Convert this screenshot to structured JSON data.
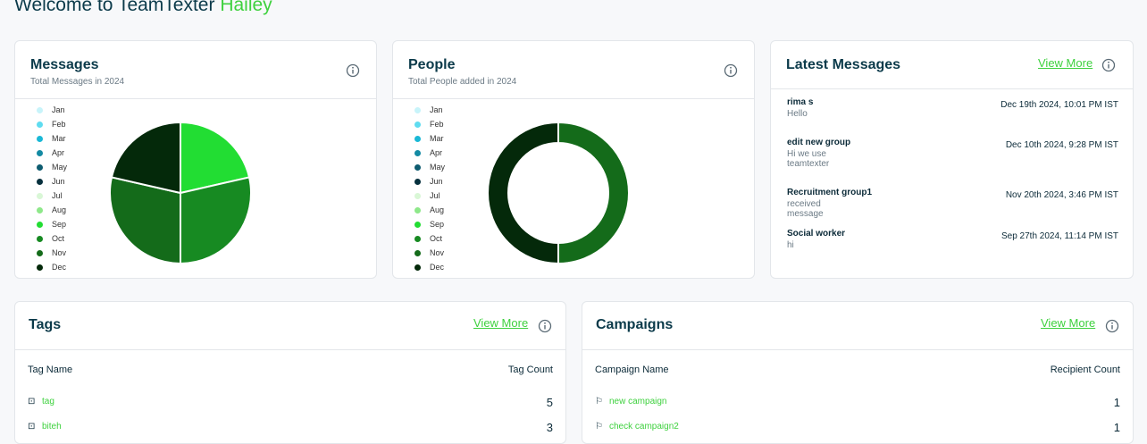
{
  "header": {
    "title": "Welcome to TeamTexter",
    "name": "Hailey"
  },
  "messages_card": {
    "title": "Messages",
    "subtitle": "Total Messages in 2024",
    "chart_data": {
      "type": "pie",
      "categories": [
        "Jan",
        "Feb",
        "Mar",
        "Apr",
        "May",
        "Jun",
        "Jul",
        "Aug",
        "Sep",
        "Oct",
        "Nov",
        "Dec"
      ],
      "colors": [
        "#c8f4fa",
        "#5fdcf0",
        "#1ab8d6",
        "#138aa3",
        "#0e5c70",
        "#06303d",
        "#d9f7d6",
        "#8ee88a",
        "#22dd33",
        "#178a22",
        "#146b1a",
        "#04290a"
      ],
      "values": [
        0,
        0,
        0,
        0,
        0,
        0,
        0,
        0,
        3,
        4,
        4,
        3
      ]
    }
  },
  "people_card": {
    "title": "People",
    "subtitle": "Total People added in 2024",
    "chart_data": {
      "type": "donut",
      "categories": [
        "Jan",
        "Feb",
        "Mar",
        "Apr",
        "May",
        "Jun",
        "Jul",
        "Aug",
        "Sep",
        "Oct",
        "Nov",
        "Dec"
      ],
      "colors": [
        "#c8f4fa",
        "#5fdcf0",
        "#1ab8d6",
        "#138aa3",
        "#0e5c70",
        "#06303d",
        "#d9f7d6",
        "#8ee88a",
        "#22dd33",
        "#178a22",
        "#146b1a",
        "#04290a"
      ],
      "values": [
        0,
        0,
        0,
        0,
        0,
        0,
        0,
        0,
        0,
        0,
        1,
        1
      ]
    }
  },
  "latest_messages": {
    "title": "Latest Messages",
    "link": "View More",
    "items": [
      {
        "name": "rima s",
        "text": "Hello",
        "date": "Dec 19th 2024, 10:01 PM IST"
      },
      {
        "name": "edit new group",
        "text": "Hi we use teamtexter",
        "date": "Dec 10th 2024, 9:28 PM IST"
      },
      {
        "name": "Recruitment group1",
        "text": "received message",
        "date": "Nov 20th 2024, 3:46 PM IST"
      },
      {
        "name": "Social worker",
        "text": "hi",
        "date": "Sep 27th 2024, 11:14 PM IST"
      }
    ]
  },
  "tags": {
    "title": "Tags",
    "link": "View More",
    "columns": [
      "Tag Name",
      "Tag Count"
    ],
    "rows": [
      [
        "tag",
        "5"
      ],
      [
        "biteh",
        "3"
      ]
    ]
  },
  "campaigns": {
    "title": "Campaigns",
    "link": "View More",
    "columns": [
      "Campaign Name",
      "Recipient Count"
    ],
    "rows": [
      [
        "new campaign",
        "1"
      ],
      [
        "check campaign2",
        "1"
      ]
    ]
  }
}
